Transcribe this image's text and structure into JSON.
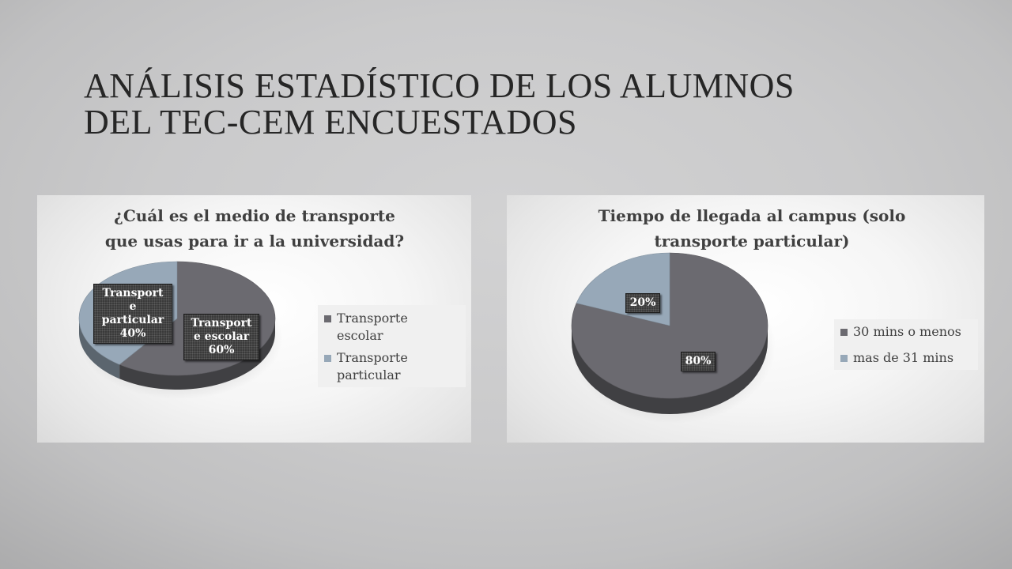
{
  "slide": {
    "title_line1": "ANÁLISIS ESTADÍSTICO DE LOS ALUMNOS",
    "title_line2": "DEL TEC-CEM ENCUESTADOS"
  },
  "colors": {
    "dark_slice": "#6b6a70",
    "light_slice": "#97a8b8"
  },
  "chart_data": [
    {
      "type": "pie",
      "title": "¿Cuál es el medio de transporte que usas para ir a la universidad?",
      "title_line1": "¿Cuál es el medio de transporte",
      "title_line2": "que usas para ir a la universidad?",
      "categories": [
        "Transporte escolar",
        "Transporte particular"
      ],
      "values": [
        60,
        40
      ],
      "data_labels": [
        [
          "Transport",
          "e escolar",
          "60%"
        ],
        [
          "Transport",
          "e",
          "particular",
          "40%"
        ]
      ],
      "legend": [
        "Transporte escolar",
        "Transporte particular"
      ],
      "legend_position": "right"
    },
    {
      "type": "pie",
      "title": "Tiempo de llegada al campus (solo transporte particular)",
      "title_line1": "Tiempo de llegada al campus (solo",
      "title_line2": "transporte particular)",
      "categories": [
        "30 mins o menos",
        "mas de 31 mins"
      ],
      "values": [
        80,
        20
      ],
      "data_labels": [
        [
          "80%"
        ],
        [
          "20%"
        ]
      ],
      "legend": [
        "30 mins o menos",
        "mas de 31 mins"
      ],
      "legend_position": "right"
    }
  ]
}
